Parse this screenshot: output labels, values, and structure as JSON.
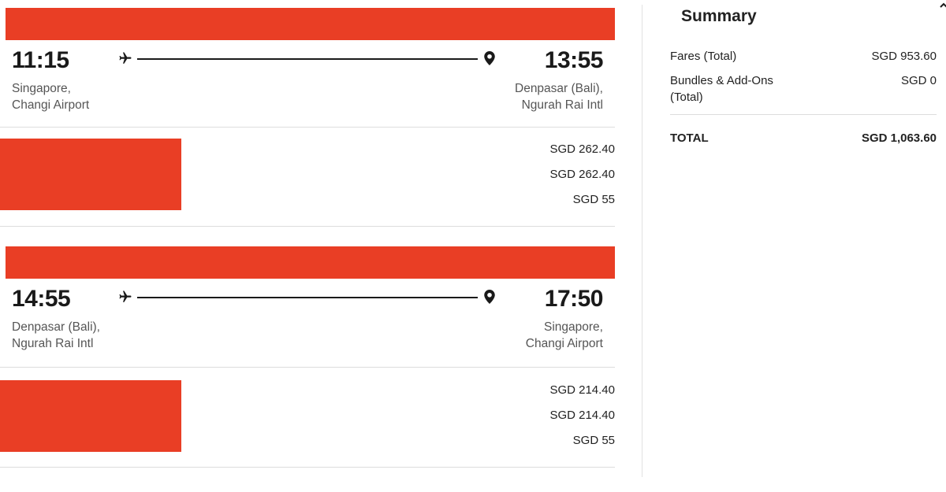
{
  "flights": [
    {
      "departure_time": "11:15",
      "arrival_time": "13:55",
      "departure_place_line1": "Singapore,",
      "departure_place_line2": "Changi Airport",
      "arrival_place_line1": "Denpasar (Bali),",
      "arrival_place_line2": "Ngurah Rai Intl",
      "prices": [
        "SGD 262.40",
        "SGD 262.40",
        "SGD 55"
      ]
    },
    {
      "departure_time": "14:55",
      "arrival_time": "17:50",
      "departure_place_line1": "Denpasar (Bali),",
      "departure_place_line2": "Ngurah Rai Intl",
      "arrival_place_line1": "Singapore,",
      "arrival_place_line2": "Changi Airport",
      "prices": [
        "SGD 214.40",
        "SGD 214.40",
        "SGD 55"
      ]
    }
  ],
  "summary": {
    "title": "Summary",
    "fares_label": "Fares (Total)",
    "fares_value": "SGD 953.60",
    "bundles_label_line1": "Bundles & Add-Ons",
    "bundles_label_line2": "(Total)",
    "bundles_value": "SGD 0",
    "total_label": "TOTAL",
    "total_value": "SGD 1,063.60"
  },
  "icons": {
    "departure": "airplane-icon",
    "arrival": "map-pin-icon",
    "collapse": "chevron-up-icon"
  },
  "colors": {
    "accent": "#e93e25",
    "text": "#222222",
    "muted": "#555555",
    "divider": "#dddddd"
  }
}
